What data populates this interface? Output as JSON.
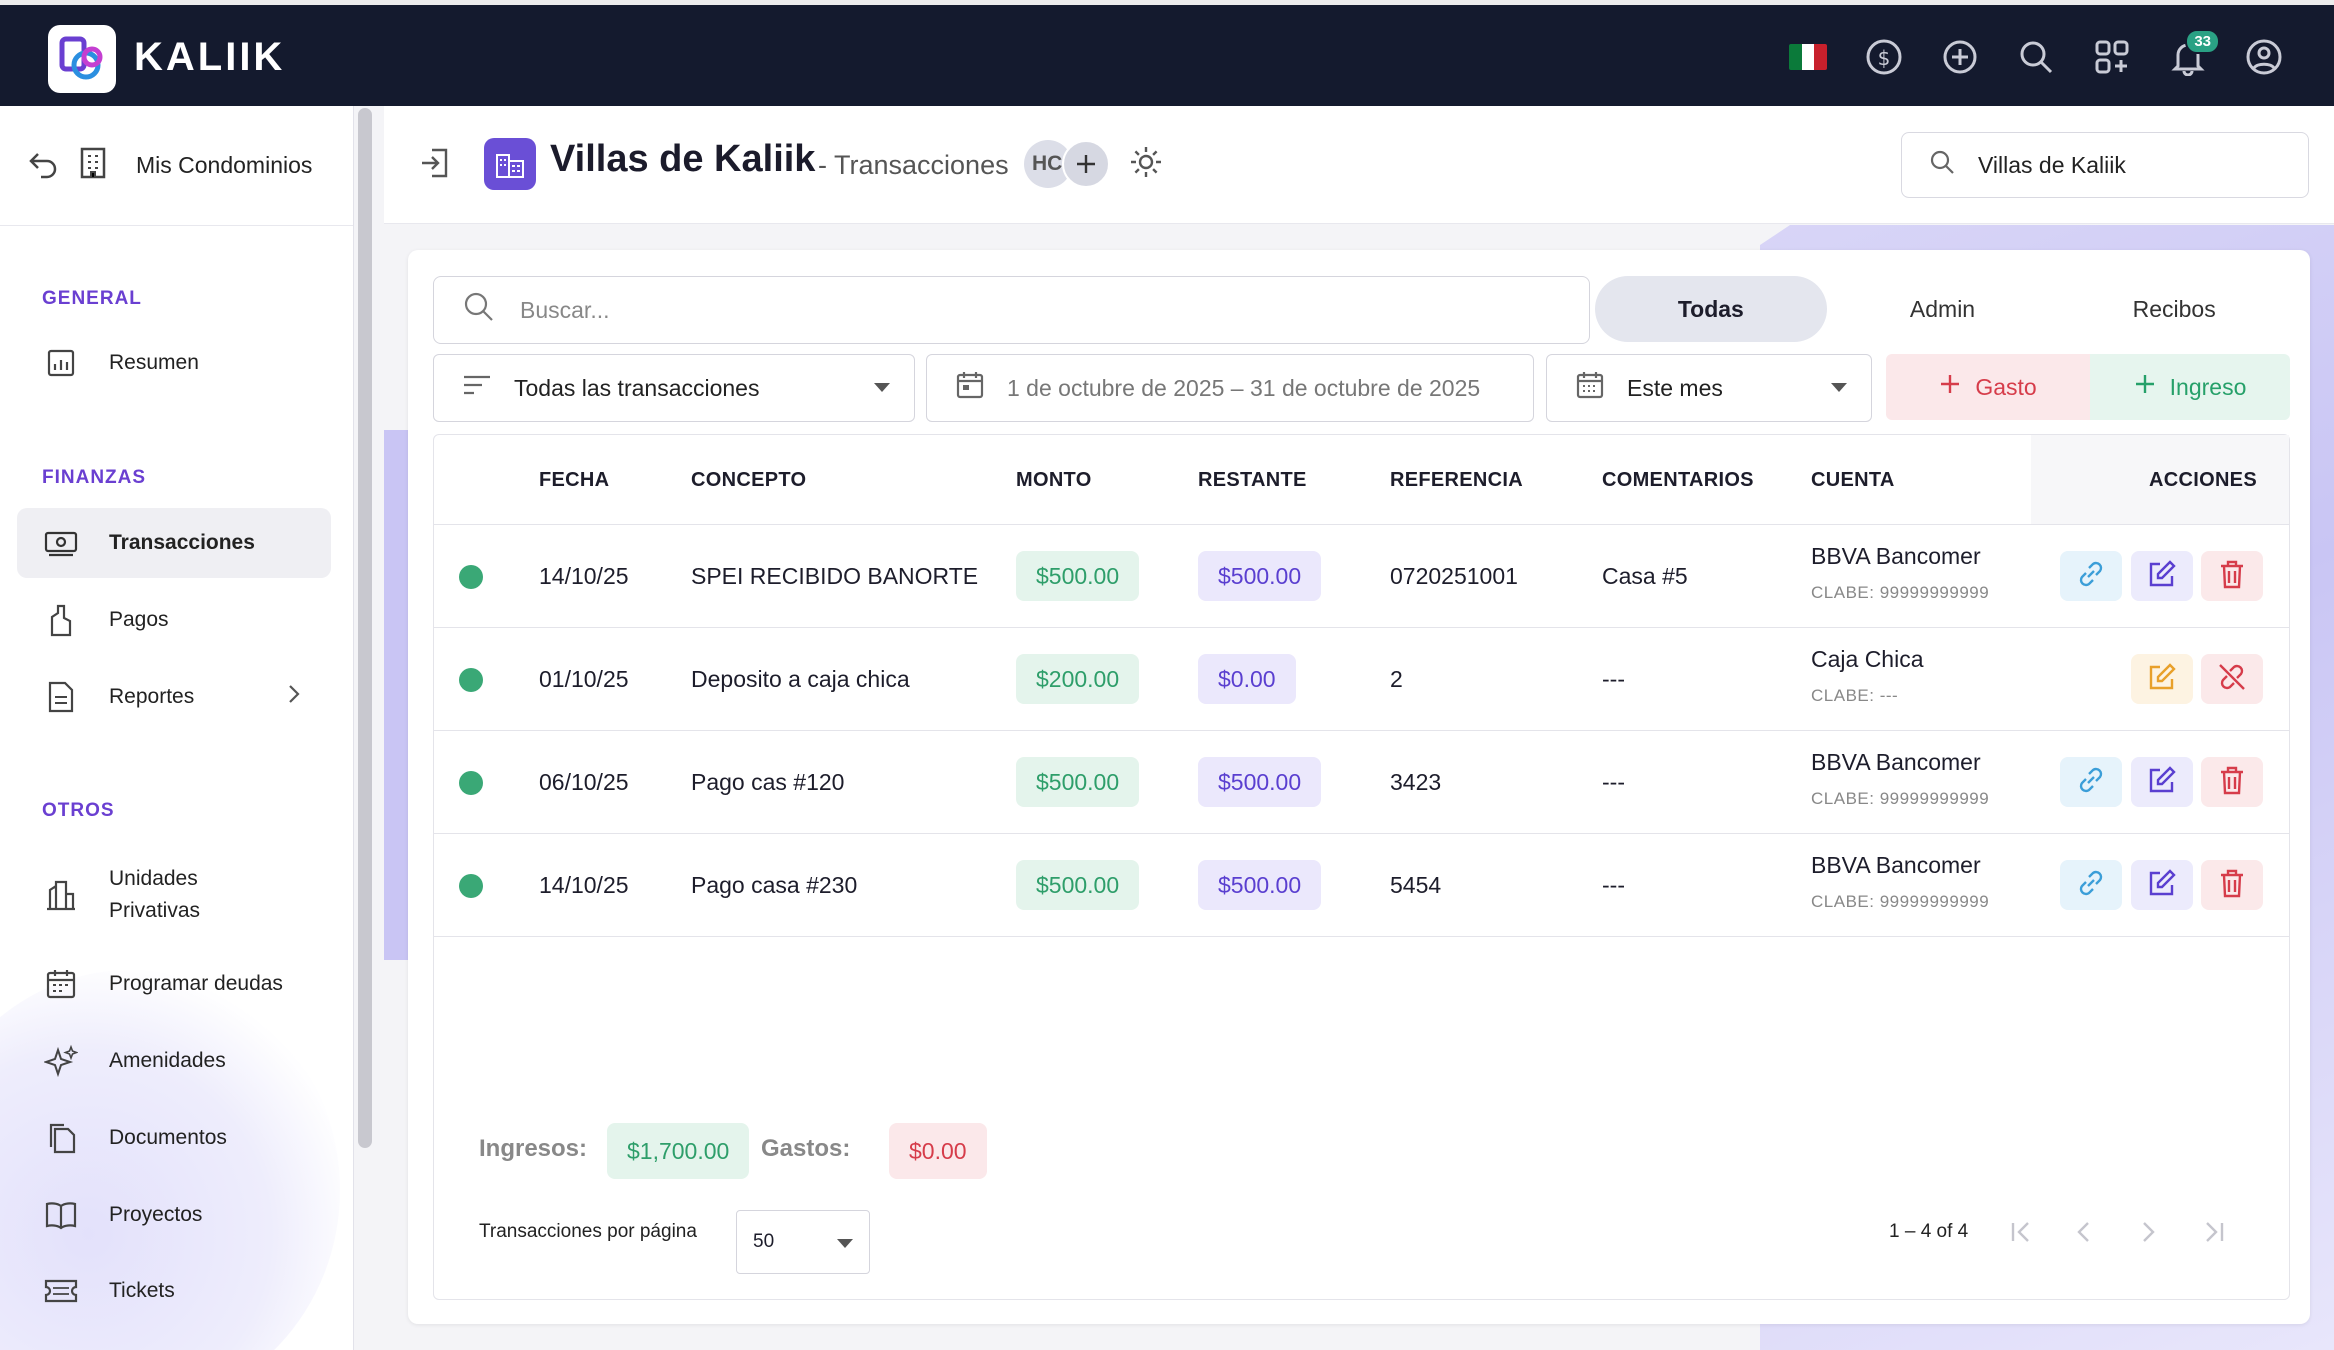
{
  "app": {
    "name": "KALIIK",
    "notifications": "33"
  },
  "sidebar": {
    "back_label": "Mis Condominios",
    "sections": [
      {
        "title": "GENERAL",
        "items": [
          {
            "label": "Resumen",
            "icon": "bar-chart-icon"
          }
        ]
      },
      {
        "title": "FINANZAS",
        "items": [
          {
            "label": "Transacciones",
            "icon": "money-icon",
            "active": true
          },
          {
            "label": "Pagos",
            "icon": "hand-pay-icon"
          },
          {
            "label": "Reportes",
            "icon": "document-icon"
          }
        ]
      },
      {
        "title": "OTROS",
        "items": [
          {
            "label": "Unidades Privativas",
            "icon": "building-icon"
          },
          {
            "label": "Programar deudas",
            "icon": "calendar-icon"
          },
          {
            "label": "Amenidades",
            "icon": "sparkles-icon"
          },
          {
            "label": "Documentos",
            "icon": "documents-icon"
          },
          {
            "label": "Proyectos",
            "icon": "book-icon"
          },
          {
            "label": "Tickets",
            "icon": "ticket-icon"
          }
        ]
      }
    ],
    "item_resumen": "Resumen",
    "item_transacciones": "Transacciones",
    "item_pagos": "Pagos",
    "item_reportes": "Reportes",
    "item_unidades_1": "Unidades",
    "item_unidades_2": "Privativas",
    "item_programar": "Programar deudas",
    "item_amenidades": "Amenidades",
    "item_documentos": "Documentos",
    "item_proyectos": "Proyectos",
    "item_tickets": "Tickets",
    "section_general": "GENERAL",
    "section_finanzas": "FINANZAS",
    "section_otros": "OTROS"
  },
  "header": {
    "title": "Villas de Kaliik",
    "subtitle": "- Transacciones",
    "avatar_initials": "HC",
    "search_value": "Villas de Kaliik"
  },
  "filters": {
    "search_placeholder": "Buscar...",
    "tabs": [
      "Todas",
      "Admin",
      "Recibos"
    ],
    "tab_todas": "Todas",
    "tab_admin": "Admin",
    "tab_recibos": "Recibos",
    "type_select": "Todas las transacciones",
    "date_range": "1 de octubre de 2025 – 31 de octubre de 2025",
    "period_select": "Este mes",
    "gasto_label": "Gasto",
    "ingreso_label": "Ingreso"
  },
  "table": {
    "columns": {
      "fecha": "FECHA",
      "concepto": "CONCEPTO",
      "monto": "MONTO",
      "restante": "RESTANTE",
      "referencia": "REFERENCIA",
      "comentarios": "COMENTARIOS",
      "cuenta": "CUENTA",
      "acciones": "ACCIONES"
    },
    "rows": [
      {
        "fecha": "14/10/25",
        "concepto": "SPEI RECIBIDO BANORTE",
        "monto": "$500.00",
        "restante": "$500.00",
        "referencia": "0720251001",
        "comentarios": "Casa #5",
        "cuenta": "BBVA Bancomer",
        "clabe": "CLABE: 99999999999"
      },
      {
        "fecha": "01/10/25",
        "concepto": "Deposito a caja chica",
        "monto": "$200.00",
        "restante": "$0.00",
        "referencia": "2",
        "comentarios": "---",
        "cuenta": "Caja Chica",
        "clabe": "CLABE: ---"
      },
      {
        "fecha": "06/10/25",
        "concepto": "Pago cas #120",
        "monto": "$500.00",
        "restante": "$500.00",
        "referencia": "3423",
        "comentarios": "---",
        "cuenta": "BBVA Bancomer",
        "clabe": "CLABE: 99999999999"
      },
      {
        "fecha": "14/10/25",
        "concepto": "Pago casa #230",
        "monto": "$500.00",
        "restante": "$500.00",
        "referencia": "5454",
        "comentarios": "---",
        "cuenta": "BBVA Bancomer",
        "clabe": "CLABE: 99999999999"
      }
    ]
  },
  "summary": {
    "ingresos_label": "Ingresos:",
    "ingresos_value": "$1,700.00",
    "gastos_label": "Gastos:",
    "gastos_value": "$0.00"
  },
  "pagination": {
    "per_page_label": "Transacciones por página",
    "per_page_value": "50",
    "range": "1 – 4 of 4"
  },
  "colors": {
    "accent": "#6a3fd1",
    "topbar": "#141a2e",
    "income": "#2e9e6a",
    "expense": "#d63c4a"
  }
}
